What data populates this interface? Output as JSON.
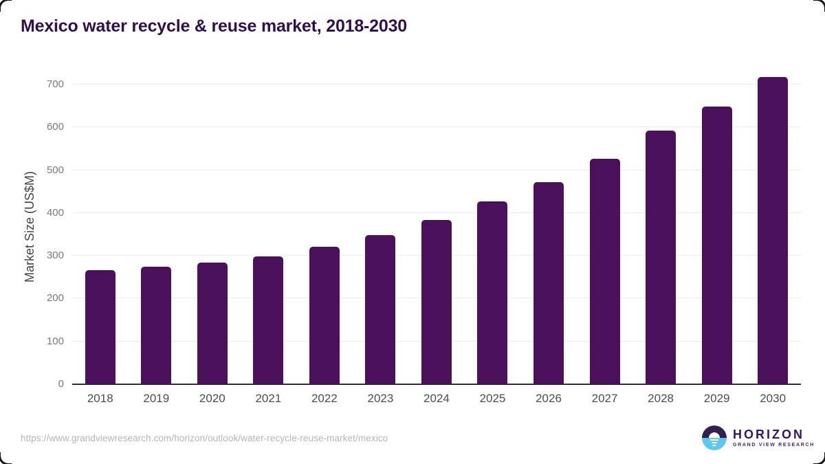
{
  "title": "Mexico water recycle & reuse market, 2018-2030",
  "footer": {
    "source_url": "https://www.grandviewresearch.com/horizon/outlook/water-recycle-reuse-market/mexico"
  },
  "logo": {
    "name": "HORIZON",
    "subtitle": "GRAND VIEW RESEARCH"
  },
  "colors": {
    "bar": "#4a1059",
    "title_text": "#31104a",
    "gridline": "#ececec",
    "axis_line": "#2e2e2e",
    "x_label": "#4d4d4d",
    "y_tick": "#7a7a7a",
    "source_text": "#b5b5b5",
    "logo_purple": "#33204f",
    "logo_blue": "#5fc6ec"
  },
  "chart_data": {
    "type": "bar",
    "title": "Mexico water recycle & reuse market, 2018-2030",
    "categories": [
      "2018",
      "2019",
      "2020",
      "2021",
      "2022",
      "2023",
      "2024",
      "2025",
      "2026",
      "2027",
      "2028",
      "2029",
      "2030"
    ],
    "values": [
      266,
      275,
      284,
      299,
      321,
      349,
      384,
      427,
      472,
      526,
      592,
      648,
      718
    ],
    "xlabel": "",
    "ylabel": "Market Size (US$M)",
    "ylim": [
      0,
      737
    ],
    "yticks": [
      0,
      100,
      200,
      300,
      400,
      500,
      600,
      700
    ],
    "grid": true,
    "legend_position": "none",
    "bar_color": "#4a1059"
  }
}
